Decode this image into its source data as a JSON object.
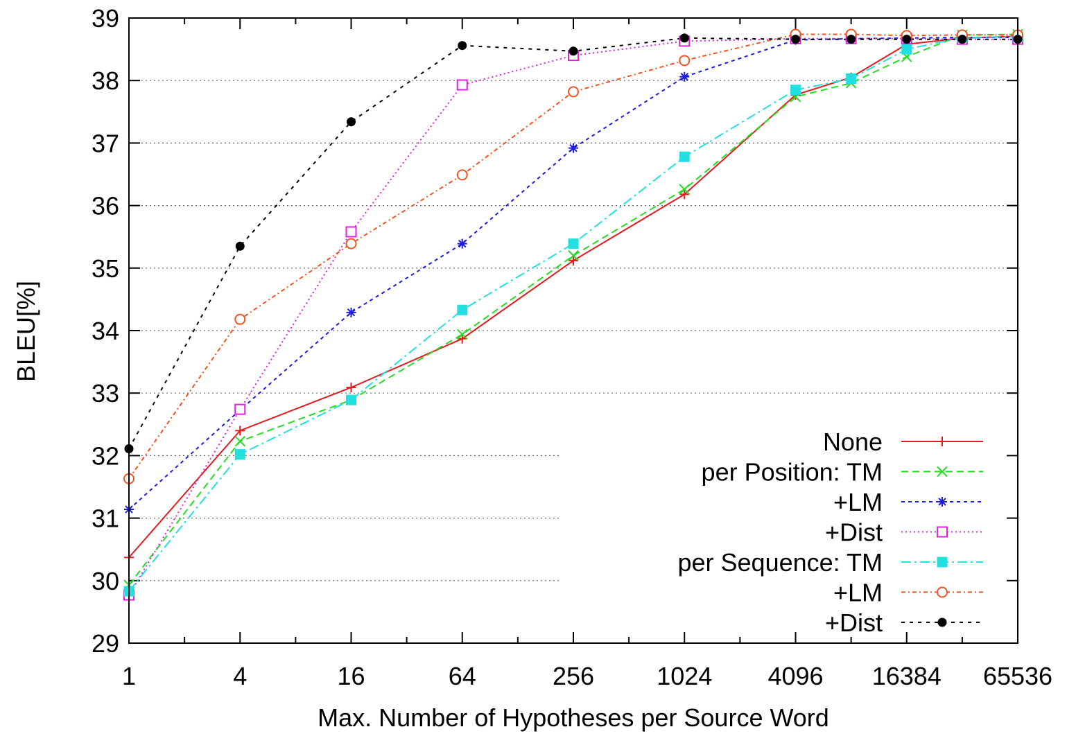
{
  "chart_data": {
    "type": "line",
    "title": "",
    "xlabel": "Max. Number of Hypotheses per Source Word",
    "ylabel": "BLEU[%]",
    "xscale": "log2",
    "xlim": [
      1,
      65536
    ],
    "ylim": [
      29,
      39
    ],
    "x_ticks": [
      1,
      4,
      16,
      64,
      256,
      1024,
      4096,
      16384,
      65536
    ],
    "x_tick_labels": [
      "1",
      "4",
      "16",
      "64",
      "256",
      "1024",
      "4096",
      "16384",
      "65536"
    ],
    "y_ticks": [
      29,
      30,
      31,
      32,
      33,
      34,
      35,
      36,
      37,
      38,
      39
    ],
    "y_tick_labels": [
      "29",
      "30",
      "31",
      "32",
      "33",
      "34",
      "35",
      "36",
      "37",
      "38",
      "39"
    ],
    "grid": "horizontal dotted",
    "legend_position": "bottom-right",
    "series": [
      {
        "name": "None",
        "legend_label": "None",
        "color": "#e41a1c",
        "dash": "solid",
        "marker": "plus",
        "x": [
          1,
          4,
          16,
          64,
          256,
          1024,
          4096,
          8192,
          16384,
          32768,
          65536
        ],
        "y": [
          30.37,
          32.4,
          33.09,
          33.87,
          35.12,
          36.18,
          37.77,
          38.05,
          38.58,
          38.68,
          38.71
        ]
      },
      {
        "name": "per Position: TM",
        "legend_label": "per Position:   TM",
        "color": "#22dd22",
        "dash": "dashed",
        "marker": "x",
        "x": [
          1,
          4,
          16,
          64,
          256,
          1024,
          4096,
          8192,
          16384,
          32768,
          65536
        ],
        "y": [
          29.93,
          32.23,
          32.89,
          33.94,
          35.2,
          36.26,
          37.74,
          37.96,
          38.38,
          38.73,
          38.74
        ]
      },
      {
        "name": "+LM",
        "legend_label": "+LM",
        "color": "#1c1cdd",
        "dash": "dense-dashed",
        "marker": "star",
        "x": [
          1,
          4,
          16,
          64,
          256,
          1024,
          4096,
          8192,
          16384,
          32768,
          65536
        ],
        "y": [
          31.14,
          32.73,
          34.29,
          35.39,
          36.92,
          38.06,
          38.65,
          38.67,
          38.68,
          38.69,
          38.69
        ]
      },
      {
        "name": "+Dist",
        "legend_label": "+Dist",
        "color": "#e020e0",
        "dash": "dotted",
        "marker": "open-square",
        "x": [
          1,
          4,
          16,
          64,
          256,
          1024,
          4096,
          8192,
          16384,
          32768,
          65536
        ],
        "y": [
          29.77,
          32.74,
          35.58,
          37.93,
          38.4,
          38.63,
          38.67,
          38.67,
          38.67,
          38.66,
          38.66
        ]
      },
      {
        "name": "per Sequence: TM",
        "legend_label": "per Sequence:   TM",
        "color": "#22e0e0",
        "dash": "dash-dot",
        "marker": "filled-square",
        "x": [
          1,
          4,
          16,
          64,
          256,
          1024,
          4096,
          8192,
          16384,
          32768,
          65536
        ],
        "y": [
          29.83,
          32.02,
          32.89,
          34.33,
          35.39,
          36.78,
          37.85,
          38.03,
          38.5,
          38.69,
          38.7
        ]
      },
      {
        "name": "+LM",
        "legend_label": "+LM",
        "color": "#ee5522",
        "dash": "dash-dot-fine",
        "marker": "open-circle",
        "x": [
          1,
          4,
          16,
          64,
          256,
          1024,
          4096,
          8192,
          16384,
          32768,
          65536
        ],
        "y": [
          31.63,
          34.18,
          35.39,
          36.49,
          37.82,
          38.32,
          38.74,
          38.74,
          38.72,
          38.73,
          38.73
        ]
      },
      {
        "name": "+Dist",
        "legend_label": "+Dist",
        "color": "#000000",
        "dash": "short-dashed",
        "marker": "filled-circle",
        "x": [
          1,
          4,
          16,
          64,
          256,
          1024,
          4096,
          8192,
          16384,
          32768,
          65536
        ],
        "y": [
          32.11,
          35.35,
          37.34,
          38.56,
          38.47,
          38.68,
          38.66,
          38.66,
          38.66,
          38.66,
          38.66
        ]
      }
    ]
  }
}
